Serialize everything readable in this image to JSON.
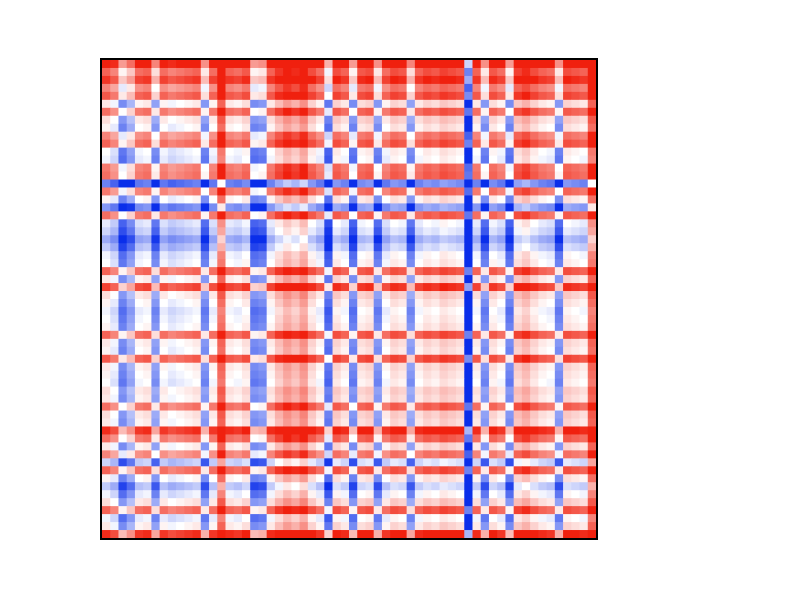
{
  "chart_data": {
    "type": "heatmap",
    "title": "",
    "xlabel": "",
    "ylabel": "",
    "grid": false,
    "legend": "none",
    "colormap": {
      "negative": "#0a2eea",
      "zero": "#ffffff",
      "positive": "#f0200e"
    },
    "value_range": [
      -1,
      1
    ],
    "n_rows": 60,
    "n_cols": 60,
    "row_factors": [
      0.75,
      0.35,
      0.55,
      0.2,
      0.4,
      -0.25,
      0.3,
      -0.2,
      -0.3,
      0.2,
      0.35,
      -0.35,
      -0.4,
      0.25,
      0.3,
      -0.95,
      0.25,
      -0.3,
      -0.85,
      0.3,
      -0.45,
      -0.55,
      -0.75,
      -0.6,
      -0.4,
      -0.35,
      0.35,
      -0.25,
      0.5,
      -0.2,
      -0.3,
      -0.4,
      -0.35,
      -0.3,
      0.35,
      -0.25,
      -0.3,
      0.4,
      -0.25,
      -0.3,
      -0.35,
      -0.2,
      -0.25,
      0.3,
      -0.2,
      -0.25,
      0.6,
      0.3,
      -0.25,
      0.2,
      -0.55,
      0.35,
      -0.3,
      -0.6,
      -0.4,
      -0.2,
      0.35,
      -0.4,
      -0.25,
      0.6
    ],
    "col_factors": [
      0.35,
      0.2,
      -0.3,
      -0.1,
      0.3,
      0.35,
      -0.2,
      0.3,
      0.2,
      0.25,
      0.3,
      0.35,
      -0.25,
      0.3,
      0.95,
      0.35,
      0.3,
      0.4,
      -0.3,
      -0.25,
      0.35,
      0.55,
      0.7,
      0.6,
      0.75,
      0.45,
      0.3,
      -0.4,
      0.45,
      0.35,
      -0.3,
      0.4,
      0.45,
      -0.25,
      0.3,
      0.45,
      0.4,
      -0.2,
      0.35,
      0.45,
      0.4,
      0.5,
      0.45,
      0.4,
      -0.95,
      0.35,
      -0.25,
      0.4,
      0.3,
      -0.3,
      0.5,
      0.6,
      0.45,
      0.35,
      0.3,
      -0.25,
      0.45,
      0.4,
      0.35,
      0.95
    ]
  }
}
